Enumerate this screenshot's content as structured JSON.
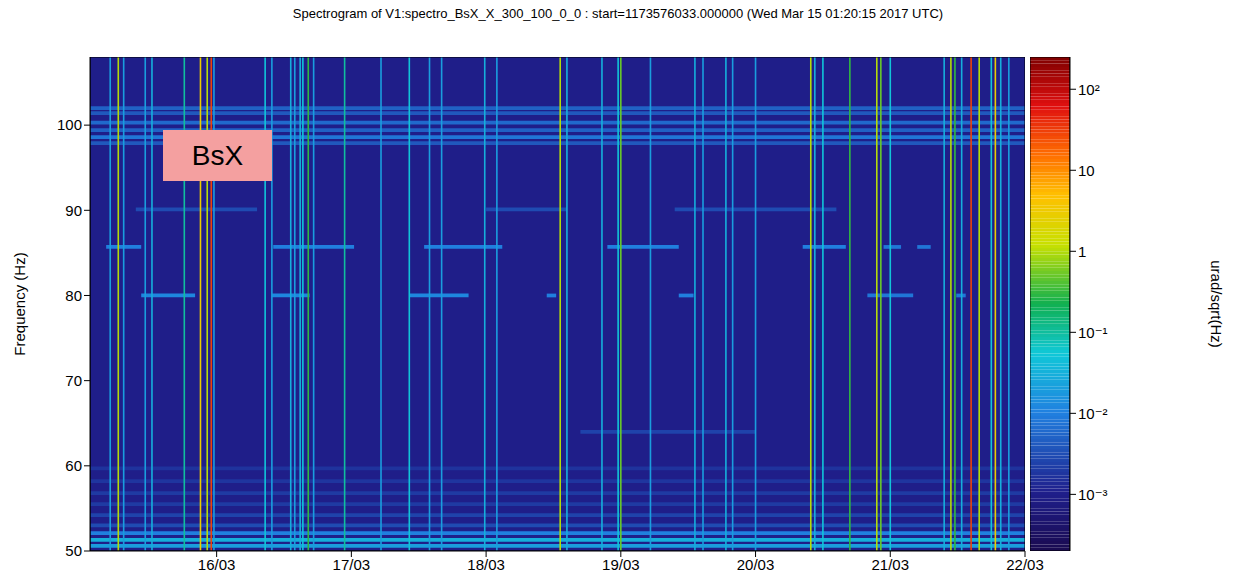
{
  "chart_data": {
    "type": "heatmap",
    "title": "Spectrogram of V1:spectro_BsX_X_300_100_0_0 : start=1173576033.000000 (Wed Mar 15 01:20:15 2017 UTC)",
    "annotation": "BsX",
    "y_label": "Frequency (Hz)",
    "xlim": [
      15.06,
      22.0
    ],
    "xticks": [
      {
        "value": 16,
        "label": "16/03"
      },
      {
        "value": 17,
        "label": "17/03"
      },
      {
        "value": 18,
        "label": "18/03"
      },
      {
        "value": 19,
        "label": "19/03"
      },
      {
        "value": 20,
        "label": "20/03"
      },
      {
        "value": 21,
        "label": "21/03"
      },
      {
        "value": 22,
        "label": "22/03"
      }
    ],
    "ylim": [
      50,
      108
    ],
    "yticks": [
      50,
      60,
      70,
      80,
      90,
      100
    ],
    "background": 0.001,
    "lines": [
      {
        "f": 97.9,
        "t": [
          15.06,
          22.0
        ],
        "value": 0.004
      },
      {
        "f": 98.6,
        "t": [
          15.06,
          22.0
        ],
        "value": 0.008
      },
      {
        "f": 99.4,
        "t": [
          15.06,
          22.0
        ],
        "value": 0.005
      },
      {
        "f": 100.3,
        "t": [
          15.06,
          22.0
        ],
        "value": 0.006
      },
      {
        "f": 101.4,
        "t": [
          15.06,
          22.0
        ],
        "value": 0.004
      },
      {
        "f": 102.0,
        "t": [
          15.06,
          22.0
        ],
        "value": 0.005
      },
      {
        "f": 50.6,
        "t": [
          15.06,
          22.0
        ],
        "value": 0.02
      },
      {
        "f": 51.3,
        "t": [
          15.06,
          22.0
        ],
        "value": 0.03
      },
      {
        "f": 52.1,
        "t": [
          15.06,
          22.0
        ],
        "value": 0.01
      },
      {
        "f": 53.0,
        "t": [
          15.06,
          22.0
        ],
        "value": 0.003
      },
      {
        "f": 54.2,
        "t": [
          15.06,
          22.0
        ],
        "value": 0.0025
      },
      {
        "f": 55.5,
        "t": [
          15.06,
          22.0
        ],
        "value": 0.002
      },
      {
        "f": 56.8,
        "t": [
          15.06,
          22.0
        ],
        "value": 0.002
      },
      {
        "f": 58.2,
        "t": [
          15.06,
          22.0
        ],
        "value": 0.0018
      },
      {
        "f": 59.7,
        "t": [
          15.06,
          22.0
        ],
        "value": 0.0017
      },
      {
        "f": 85.7,
        "t": [
          15.18,
          15.44
        ],
        "value": 0.01
      },
      {
        "f": 85.7,
        "t": [
          16.42,
          17.02
        ],
        "value": 0.01
      },
      {
        "f": 85.7,
        "t": [
          17.54,
          18.12
        ],
        "value": 0.01
      },
      {
        "f": 85.7,
        "t": [
          18.9,
          19.43
        ],
        "value": 0.01
      },
      {
        "f": 85.7,
        "t": [
          20.35,
          20.67
        ],
        "value": 0.01
      },
      {
        "f": 85.7,
        "t": [
          20.95,
          21.08
        ],
        "value": 0.008
      },
      {
        "f": 85.7,
        "t": [
          21.2,
          21.3
        ],
        "value": 0.008
      },
      {
        "f": 80.0,
        "t": [
          15.44,
          15.84
        ],
        "value": 0.012
      },
      {
        "f": 80.0,
        "t": [
          16.41,
          16.69
        ],
        "value": 0.012
      },
      {
        "f": 80.0,
        "t": [
          17.43,
          17.87
        ],
        "value": 0.012
      },
      {
        "f": 80.0,
        "t": [
          18.45,
          18.52
        ],
        "value": 0.01
      },
      {
        "f": 80.0,
        "t": [
          19.43,
          19.54
        ],
        "value": 0.01
      },
      {
        "f": 80.0,
        "t": [
          20.83,
          21.17
        ],
        "value": 0.008
      },
      {
        "f": 80.0,
        "t": [
          21.49,
          21.56
        ],
        "value": 0.008
      },
      {
        "f": 90.1,
        "t": [
          15.4,
          16.3
        ],
        "value": 0.003
      },
      {
        "f": 90.1,
        "t": [
          18.0,
          18.6
        ],
        "value": 0.003
      },
      {
        "f": 90.1,
        "t": [
          19.4,
          20.6
        ],
        "value": 0.003
      },
      {
        "f": 64.0,
        "t": [
          18.7,
          20.0
        ],
        "value": 0.0025
      }
    ],
    "transients": [
      {
        "t": 15.21,
        "value": 0.02
      },
      {
        "t": 15.27,
        "value": 1
      },
      {
        "t": 15.31,
        "value": 0.02
      },
      {
        "t": 15.47,
        "value": 0.02
      },
      {
        "t": 15.52,
        "value": 0.03
      },
      {
        "t": 15.76,
        "value": 0.1
      },
      {
        "t": 15.88,
        "value": 3
      },
      {
        "t": 15.93,
        "value": 1
      },
      {
        "t": 15.96,
        "value": 30
      },
      {
        "t": 15.98,
        "value": 0.02
      },
      {
        "t": 16.36,
        "value": 0.05
      },
      {
        "t": 16.41,
        "value": 0.02
      },
      {
        "t": 16.55,
        "value": 0.03
      },
      {
        "t": 16.58,
        "value": 0.02
      },
      {
        "t": 16.62,
        "value": 0.03
      },
      {
        "t": 16.64,
        "value": 0.05
      },
      {
        "t": 16.68,
        "value": 0.3
      },
      {
        "t": 16.72,
        "value": 0.02
      },
      {
        "t": 16.95,
        "value": 0.1
      },
      {
        "t": 17.22,
        "value": 0.02
      },
      {
        "t": 17.43,
        "value": 0.05
      },
      {
        "t": 17.58,
        "value": 0.02
      },
      {
        "t": 17.67,
        "value": 0.02
      },
      {
        "t": 17.99,
        "value": 0.03
      },
      {
        "t": 18.08,
        "value": 0.02
      },
      {
        "t": 18.55,
        "value": 1
      },
      {
        "t": 18.6,
        "value": 0.03
      },
      {
        "t": 18.86,
        "value": 0.03
      },
      {
        "t": 18.98,
        "value": 0.05
      },
      {
        "t": 19.0,
        "value": 0.5
      },
      {
        "t": 19.22,
        "value": 0.02
      },
      {
        "t": 19.55,
        "value": 0.03
      },
      {
        "t": 19.61,
        "value": 0.02
      },
      {
        "t": 19.78,
        "value": 0.03
      },
      {
        "t": 19.83,
        "value": 0.02
      },
      {
        "t": 20.0,
        "value": 0.02
      },
      {
        "t": 20.41,
        "value": 1
      },
      {
        "t": 20.44,
        "value": 0.03
      },
      {
        "t": 20.5,
        "value": 0.05
      },
      {
        "t": 20.7,
        "value": 0.3
      },
      {
        "t": 20.9,
        "value": 1
      },
      {
        "t": 20.93,
        "value": 0.5
      },
      {
        "t": 21.0,
        "value": 0.05
      },
      {
        "t": 21.4,
        "value": 0.03
      },
      {
        "t": 21.45,
        "value": 1
      },
      {
        "t": 21.48,
        "value": 0.3
      },
      {
        "t": 21.53,
        "value": 0.03
      },
      {
        "t": 21.6,
        "value": 30
      },
      {
        "t": 21.66,
        "value": 1
      },
      {
        "t": 21.75,
        "value": 0.05
      },
      {
        "t": 21.78,
        "value": 3
      },
      {
        "t": 21.82,
        "value": 0.03
      },
      {
        "t": 21.88,
        "value": 0.02
      }
    ],
    "colorbar": {
      "label": "urad/sqrt(Hz)",
      "log": true,
      "lim": [
        0.0002,
        250
      ],
      "ticks": [
        {
          "value": 0.001,
          "label": "10⁻³"
        },
        {
          "value": 0.01,
          "label": "10⁻²"
        },
        {
          "value": 0.1,
          "label": "10⁻¹"
        },
        1,
        10,
        {
          "value": 100,
          "label": "10²"
        }
      ]
    }
  }
}
